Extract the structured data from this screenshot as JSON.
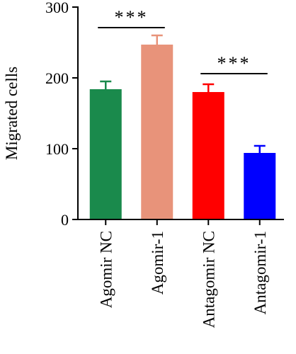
{
  "chart_data": {
    "type": "bar",
    "title": "",
    "xlabel": "",
    "ylabel": "Migrated cells",
    "ylim": [
      0,
      300
    ],
    "yticks": [
      0,
      100,
      200,
      300
    ],
    "grid": false,
    "categories": [
      "Agomir NC",
      "Agomir-1",
      "Antagomir NC",
      "Antagomir-1"
    ],
    "values": [
      184,
      247,
      180,
      94
    ],
    "errors": [
      11,
      13,
      11,
      10
    ],
    "colors": [
      "#1a8a4c",
      "#e8937a",
      "#ff0000",
      "#0000ff"
    ],
    "significance": [
      {
        "from": 0,
        "to": 1,
        "label": "***"
      },
      {
        "from": 2,
        "to": 3,
        "label": "***"
      }
    ]
  }
}
